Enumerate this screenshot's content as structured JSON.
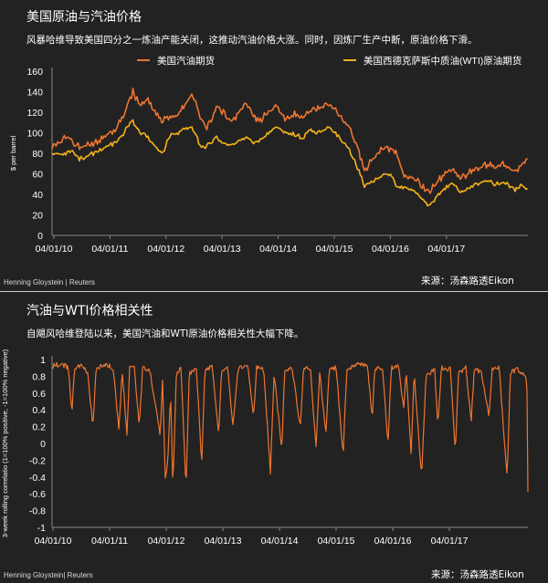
{
  "chart_top": {
    "title": "美国原油与汽油价格",
    "subtitle": "风暴哈维导致美国四分之一炼油产能关闭，这推动汽油价格大涨。同时，因炼厂生产中断，原油价格下滑。",
    "credit": "Henning Gloystein | Reuters",
    "source": "来源：汤森路透Eikon"
  },
  "chart_bottom": {
    "title": "汽油与WTI价格相关性",
    "subtitle": "自飓风哈维登陆以来，美国汽油和WTI原油价格相关性大幅下降。",
    "credit": "Henning Gloystein| Reuters",
    "source": "来源：汤森路透Eikon"
  },
  "colors": {
    "background": "#222222",
    "gasoline": "#ee7530",
    "wti": "#f6b21a",
    "correlation": "#ee7530",
    "axis": "#888888",
    "text": "#ffffff"
  },
  "chart_data": [
    {
      "type": "line",
      "ylabel": "$ per barrel",
      "xlabel": "",
      "ylim": [
        0,
        160
      ],
      "yticks": [
        0,
        20,
        40,
        60,
        80,
        100,
        120,
        140,
        160
      ],
      "x_tick_labels": [
        "04/01/10",
        "04/01/11",
        "04/01/12",
        "04/01/13",
        "04/01/14",
        "04/01/15",
        "04/01/16",
        "04/01/17"
      ],
      "x_range": [
        "2010-01-04",
        "2017-08-31"
      ],
      "grid": false,
      "legend_position": "top",
      "series": [
        {
          "name": "美国汽油期货",
          "color": "#ee7530",
          "points": [
            [
              "2010-01-04",
              88
            ],
            [
              "2010-03-15",
              95
            ],
            [
              "2010-05-01",
              92
            ],
            [
              "2010-06-15",
              85
            ],
            [
              "2010-08-01",
              88
            ],
            [
              "2010-10-01",
              92
            ],
            [
              "2010-12-01",
              100
            ],
            [
              "2011-01-15",
              103
            ],
            [
              "2011-03-01",
              118
            ],
            [
              "2011-04-25",
              140
            ],
            [
              "2011-06-01",
              128
            ],
            [
              "2011-07-15",
              132
            ],
            [
              "2011-09-01",
              120
            ],
            [
              "2011-10-15",
              112
            ],
            [
              "2011-12-01",
              115
            ],
            [
              "2012-01-15",
              118
            ],
            [
              "2012-03-15",
              134
            ],
            [
              "2012-04-15",
              136
            ],
            [
              "2012-06-01",
              112
            ],
            [
              "2012-07-01",
              105
            ],
            [
              "2012-09-01",
              126
            ],
            [
              "2012-10-15",
              118
            ],
            [
              "2012-12-01",
              112
            ],
            [
              "2013-02-15",
              130
            ],
            [
              "2013-04-15",
              112
            ],
            [
              "2013-06-01",
              115
            ],
            [
              "2013-08-15",
              128
            ],
            [
              "2013-10-01",
              112
            ],
            [
              "2013-12-01",
              118
            ],
            [
              "2014-01-15",
              115
            ],
            [
              "2014-03-01",
              122
            ],
            [
              "2014-05-01",
              124
            ],
            [
              "2014-06-15",
              130
            ],
            [
              "2014-08-15",
              118
            ],
            [
              "2014-10-15",
              105
            ],
            [
              "2014-12-01",
              88
            ],
            [
              "2015-01-15",
              60
            ],
            [
              "2015-02-15",
              72
            ],
            [
              "2015-05-01",
              86
            ],
            [
              "2015-06-15",
              84
            ],
            [
              "2015-07-15",
              82
            ],
            [
              "2015-09-01",
              58
            ],
            [
              "2015-10-15",
              58
            ],
            [
              "2015-12-01",
              52
            ],
            [
              "2016-02-01",
              42
            ],
            [
              "2016-03-15",
              52
            ],
            [
              "2016-05-01",
              60
            ],
            [
              "2016-06-15",
              64
            ],
            [
              "2016-08-01",
              56
            ],
            [
              "2016-10-01",
              62
            ],
            [
              "2016-12-01",
              68
            ],
            [
              "2017-01-15",
              70
            ],
            [
              "2017-03-01",
              66
            ],
            [
              "2017-04-15",
              70
            ],
            [
              "2017-06-15",
              62
            ],
            [
              "2017-08-01",
              70
            ],
            [
              "2017-08-28",
              74
            ],
            [
              "2017-08-31",
              84
            ]
          ]
        },
        {
          "name": "美国西德克萨斯中质油(WTI)原油期货",
          "color": "#f6b21a",
          "points": [
            [
              "2010-01-04",
              80
            ],
            [
              "2010-03-15",
              80
            ],
            [
              "2010-05-01",
              82
            ],
            [
              "2010-06-15",
              74
            ],
            [
              "2010-08-01",
              78
            ],
            [
              "2010-10-01",
              82
            ],
            [
              "2010-12-01",
              88
            ],
            [
              "2011-01-15",
              90
            ],
            [
              "2011-03-01",
              100
            ],
            [
              "2011-04-25",
              112
            ],
            [
              "2011-06-01",
              100
            ],
            [
              "2011-07-15",
              96
            ],
            [
              "2011-09-01",
              86
            ],
            [
              "2011-10-15",
              80
            ],
            [
              "2011-12-01",
              98
            ],
            [
              "2012-01-15",
              100
            ],
            [
              "2012-03-15",
              106
            ],
            [
              "2012-04-15",
              104
            ],
            [
              "2012-06-01",
              84
            ],
            [
              "2012-07-01",
              88
            ],
            [
              "2012-09-01",
              96
            ],
            [
              "2012-10-15",
              88
            ],
            [
              "2012-12-01",
              88
            ],
            [
              "2013-02-15",
              95
            ],
            [
              "2013-04-15",
              90
            ],
            [
              "2013-06-01",
              96
            ],
            [
              "2013-08-15",
              106
            ],
            [
              "2013-10-01",
              100
            ],
            [
              "2013-12-01",
              98
            ],
            [
              "2014-01-15",
              94
            ],
            [
              "2014-03-01",
              102
            ],
            [
              "2014-05-01",
              100
            ],
            [
              "2014-06-15",
              106
            ],
            [
              "2014-08-15",
              96
            ],
            [
              "2014-10-15",
              84
            ],
            [
              "2014-12-01",
              68
            ],
            [
              "2015-01-15",
              48
            ],
            [
              "2015-02-15",
              52
            ],
            [
              "2015-05-01",
              58
            ],
            [
              "2015-06-15",
              60
            ],
            [
              "2015-07-15",
              50
            ],
            [
              "2015-09-01",
              45
            ],
            [
              "2015-10-15",
              46
            ],
            [
              "2015-12-01",
              38
            ],
            [
              "2016-02-01",
              29
            ],
            [
              "2016-03-15",
              38
            ],
            [
              "2016-05-01",
              46
            ],
            [
              "2016-06-15",
              50
            ],
            [
              "2016-08-01",
              42
            ],
            [
              "2016-10-01",
              48
            ],
            [
              "2016-12-01",
              52
            ],
            [
              "2017-01-15",
              53
            ],
            [
              "2017-03-01",
              50
            ],
            [
              "2017-04-15",
              52
            ],
            [
              "2017-06-15",
              44
            ],
            [
              "2017-08-01",
              49
            ],
            [
              "2017-08-28",
              46
            ],
            [
              "2017-08-31",
              47
            ]
          ]
        }
      ]
    },
    {
      "type": "line",
      "ylabel": "3-week rolling correlatio (1=100% positive, -1=100% negative)",
      "xlabel": "",
      "ylim": [
        -1,
        1
      ],
      "yticks": [
        -1,
        -0.8,
        -0.6,
        -0.4,
        -0.2,
        0,
        0.2,
        0.4,
        0.6,
        0.8,
        1
      ],
      "x_tick_labels": [
        "04/01/10",
        "04/01/11",
        "04/01/12",
        "04/01/13",
        "04/01/14",
        "04/01/15",
        "04/01/16",
        "04/01/17"
      ],
      "x_range": [
        "2010-01-04",
        "2017-08-31"
      ],
      "grid": false,
      "series": [
        {
          "color": "#ee7530",
          "points": [
            [
              "2010-01-04",
              0.92
            ],
            [
              "2010-03-01",
              0.95
            ],
            [
              "2010-04-10",
              0.9
            ],
            [
              "2010-05-01",
              0.35
            ],
            [
              "2010-05-15",
              0.9
            ],
            [
              "2010-07-01",
              0.92
            ],
            [
              "2010-08-01",
              0.85
            ],
            [
              "2010-09-01",
              0.2
            ],
            [
              "2010-09-20",
              0.9
            ],
            [
              "2010-11-01",
              0.93
            ],
            [
              "2010-12-10",
              0.92
            ],
            [
              "2011-01-01",
              0.85
            ],
            [
              "2011-02-01",
              0.15
            ],
            [
              "2011-02-20",
              0.88
            ],
            [
              "2011-03-20",
              0.1
            ],
            [
              "2011-04-05",
              0.9
            ],
            [
              "2011-05-01",
              0.92
            ],
            [
              "2011-06-01",
              0.2
            ],
            [
              "2011-06-20",
              0.9
            ],
            [
              "2011-08-01",
              0.88
            ],
            [
              "2011-10-01",
              0.1
            ],
            [
              "2011-10-15",
              0.75
            ],
            [
              "2011-11-01",
              -0.45
            ],
            [
              "2011-11-15",
              -0.2
            ],
            [
              "2011-12-01",
              0.6
            ],
            [
              "2011-12-15",
              -0.53
            ],
            [
              "2012-01-05",
              0.85
            ],
            [
              "2012-02-01",
              0.9
            ],
            [
              "2012-03-01",
              -0.55
            ],
            [
              "2012-03-20",
              0.82
            ],
            [
              "2012-05-01",
              0.9
            ],
            [
              "2012-06-01",
              -0.25
            ],
            [
              "2012-06-20",
              0.88
            ],
            [
              "2012-08-01",
              0.92
            ],
            [
              "2012-09-10",
              0.1
            ],
            [
              "2012-09-25",
              0.85
            ],
            [
              "2012-11-01",
              0.9
            ],
            [
              "2012-12-01",
              0.2
            ],
            [
              "2013-01-01",
              0.9
            ],
            [
              "2013-03-01",
              0.92
            ],
            [
              "2013-04-01",
              0.3
            ],
            [
              "2013-04-20",
              0.9
            ],
            [
              "2013-06-01",
              0.88
            ],
            [
              "2013-07-10",
              -0.35
            ],
            [
              "2013-08-01",
              0.85
            ],
            [
              "2013-09-15",
              -0.1
            ],
            [
              "2013-10-01",
              0.88
            ],
            [
              "2013-11-15",
              0.9
            ],
            [
              "2014-01-01",
              0.2
            ],
            [
              "2014-01-20",
              0.88
            ],
            [
              "2014-03-01",
              0.9
            ],
            [
              "2014-04-05",
              -0.05
            ],
            [
              "2014-04-25",
              0.85
            ],
            [
              "2014-06-01",
              0.1
            ],
            [
              "2014-06-20",
              0.88
            ],
            [
              "2014-08-01",
              0.9
            ],
            [
              "2014-09-10",
              -0.15
            ],
            [
              "2014-10-01",
              0.85
            ],
            [
              "2014-11-01",
              0.92
            ],
            [
              "2015-01-01",
              0.95
            ],
            [
              "2015-02-01",
              0.9
            ],
            [
              "2015-03-01",
              0.3
            ],
            [
              "2015-03-15",
              0.9
            ],
            [
              "2015-05-01",
              0.88
            ],
            [
              "2015-06-01",
              0.0
            ],
            [
              "2015-06-20",
              0.9
            ],
            [
              "2015-08-01",
              0.92
            ],
            [
              "2015-09-01",
              0.4
            ],
            [
              "2015-09-15",
              0.88
            ],
            [
              "2015-10-15",
              -0.15
            ],
            [
              "2015-11-01",
              0.85
            ],
            [
              "2015-12-15",
              -0.4
            ],
            [
              "2016-01-10",
              0.8
            ],
            [
              "2016-03-01",
              0.88
            ],
            [
              "2016-03-20",
              0.2
            ],
            [
              "2016-04-10",
              0.9
            ],
            [
              "2016-06-01",
              0.88
            ],
            [
              "2016-07-01",
              -0.1
            ],
            [
              "2016-07-20",
              0.85
            ],
            [
              "2016-09-01",
              0.9
            ],
            [
              "2016-10-01",
              0.25
            ],
            [
              "2016-10-20",
              0.88
            ],
            [
              "2016-12-01",
              0.85
            ],
            [
              "2017-01-15",
              0.3
            ],
            [
              "2017-02-01",
              0.88
            ],
            [
              "2017-03-15",
              0.9
            ],
            [
              "2017-05-01",
              -0.42
            ],
            [
              "2017-05-20",
              0.85
            ],
            [
              "2017-07-01",
              0.88
            ],
            [
              "2017-08-10",
              0.82
            ],
            [
              "2017-08-25",
              0.78
            ],
            [
              "2017-08-31",
              -0.58
            ]
          ]
        }
      ]
    }
  ]
}
